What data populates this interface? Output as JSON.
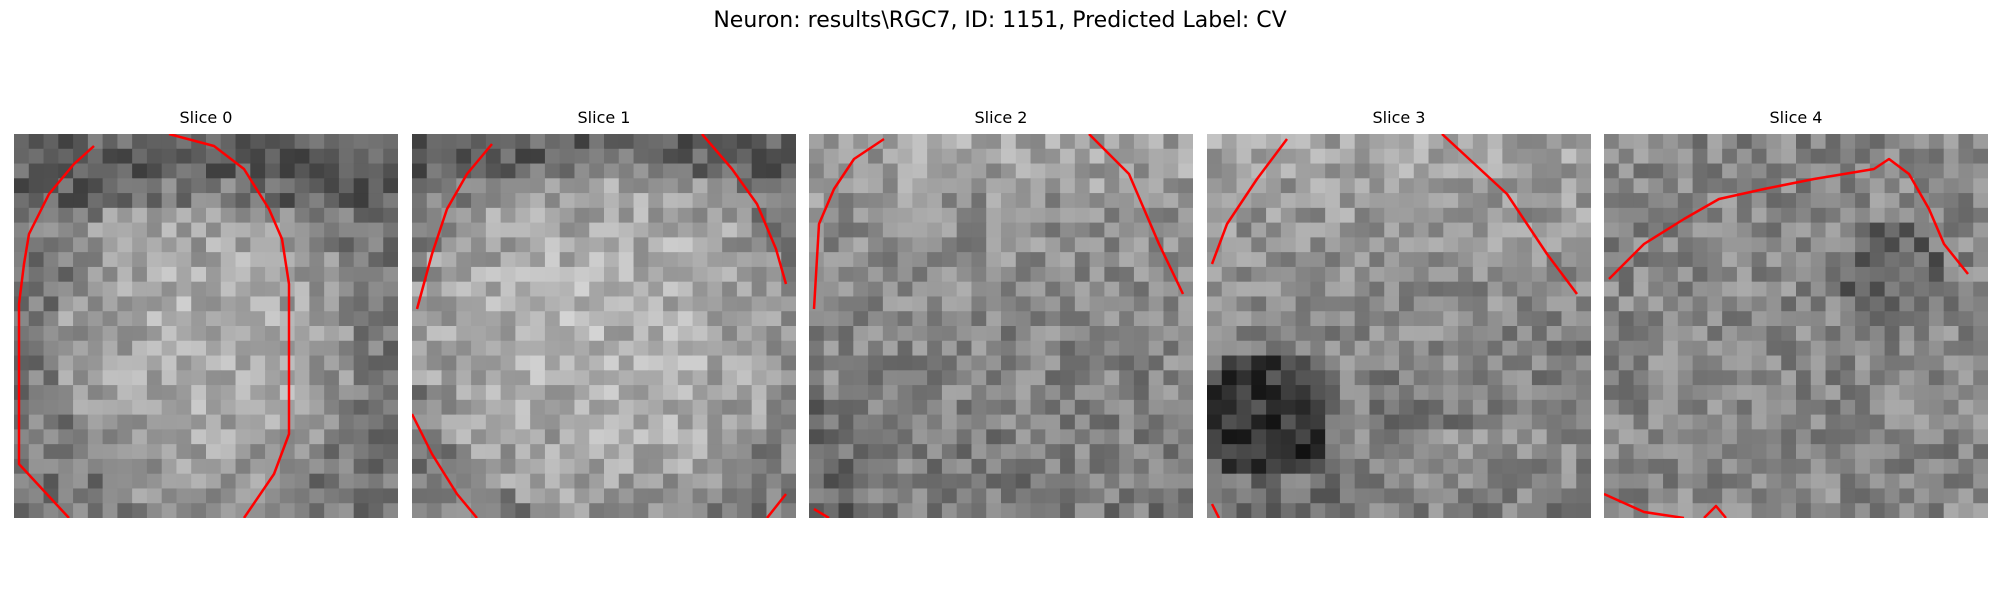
{
  "figure": {
    "suptitle": "Neuron: results\\RGC7, ID: 1151, Predicted Label: CV"
  },
  "panels": [
    {
      "title": "Slice 0"
    },
    {
      "title": "Slice 1"
    },
    {
      "title": "Slice 2"
    },
    {
      "title": "Slice 3"
    },
    {
      "title": "Slice 4"
    }
  ],
  "colors": {
    "contour": "#ff0000"
  }
}
